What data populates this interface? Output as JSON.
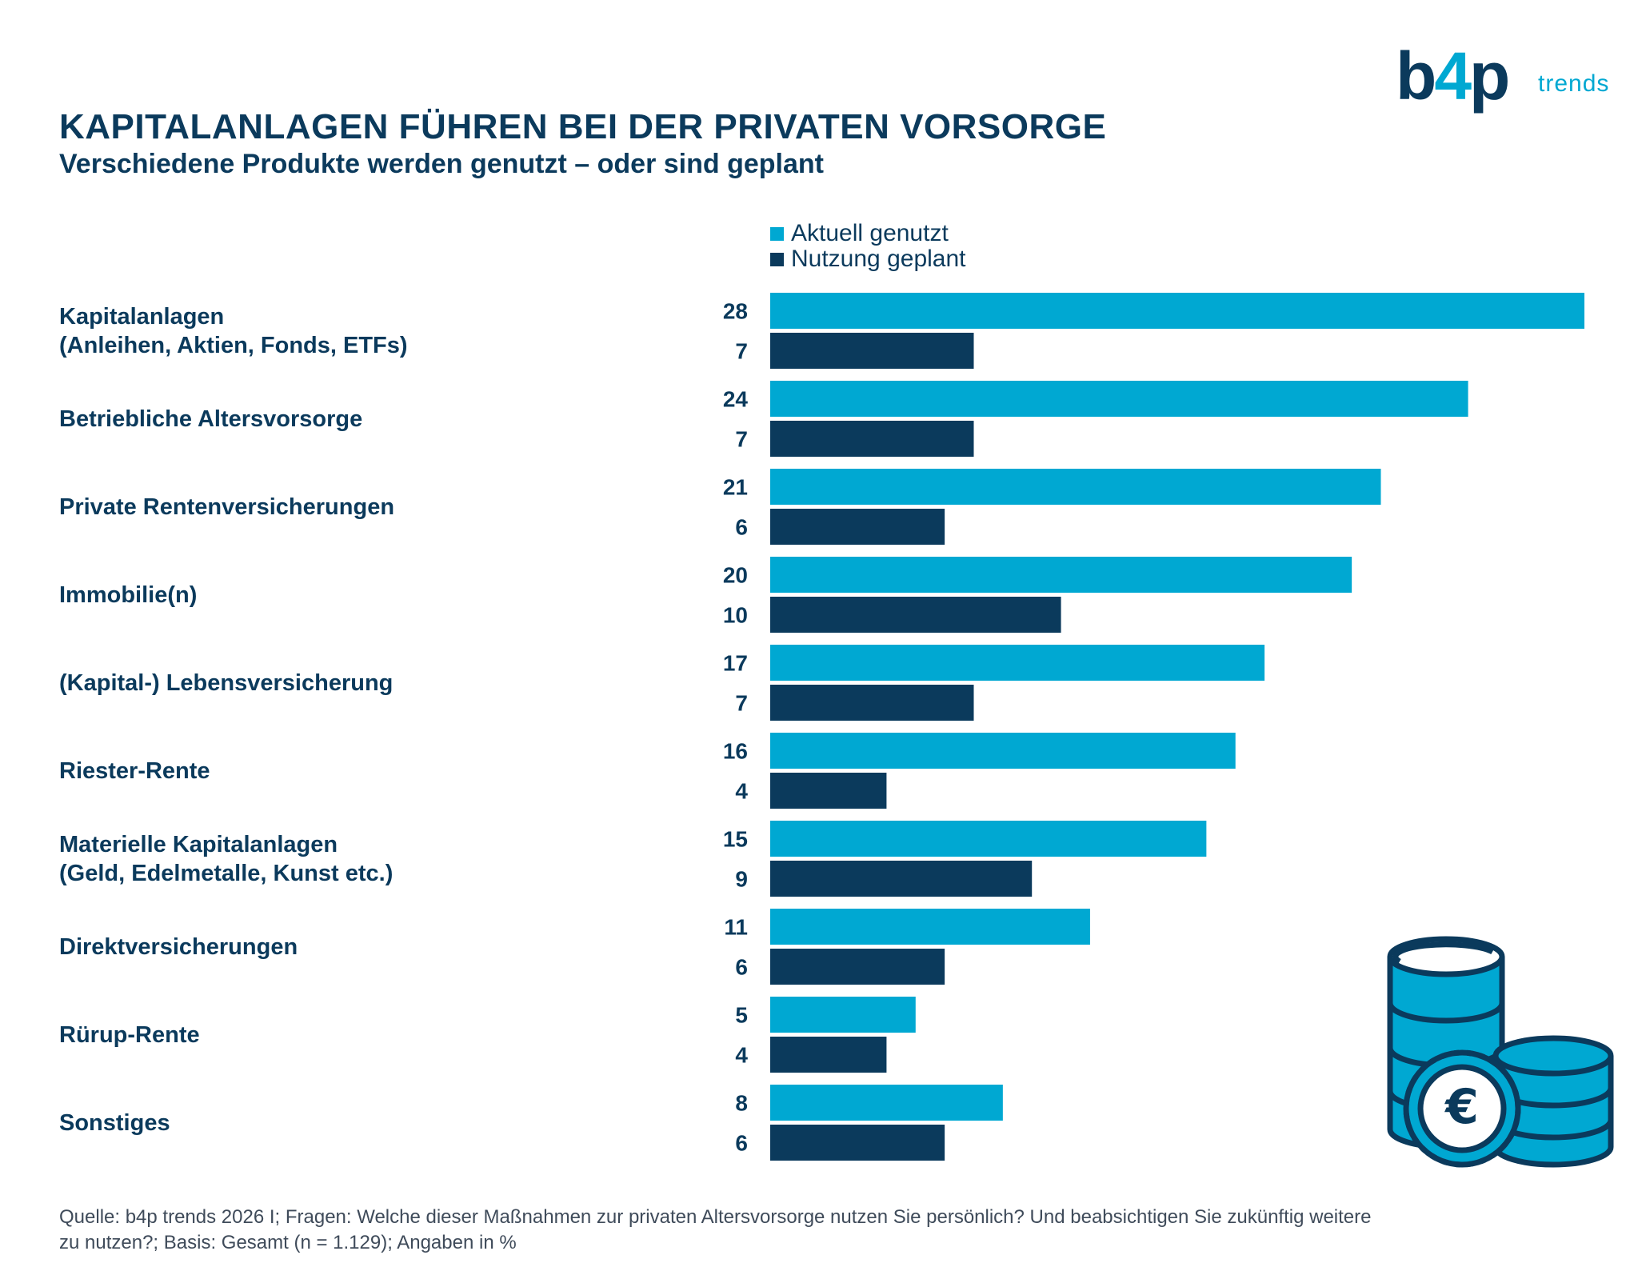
{
  "title": "KAPITALANLAGEN FÜHREN BEI DER PRIVATEN VORSORGE",
  "subtitle": "Verschiedene Produkte werden genutzt – oder sind geplant",
  "logo": {
    "mark_left": "b",
    "mark_four": "4",
    "mark_right": "p",
    "word": "trends"
  },
  "legend": {
    "current": "Aktuell genutzt",
    "planned": "Nutzung geplant"
  },
  "colors": {
    "current": "#00a8d2",
    "planned": "#0b3a5c",
    "text": "#0b3a5c"
  },
  "footnote": {
    "line1": "Quelle: b4p trends 2026 I; Fragen: Welche dieser Maßnahmen zur privaten Altersvorsorge nutzen Sie persönlich? Und beabsichtigen Sie zukünftig weitere",
    "line2": "zu nutzen?; Basis: Gesamt (n = 1.129); Angaben in %"
  },
  "icon": "coins-euro-icon",
  "chart_data": {
    "type": "bar",
    "orientation": "horizontal",
    "title": "KAPITALANLAGEN FÜHREN BEI DER PRIVATEN VORSORGE",
    "unit": "%",
    "xlim": [
      0,
      28
    ],
    "categories": [
      [
        "Kapitalanlagen",
        "(Anleihen, Aktien, Fonds, ETFs)"
      ],
      [
        "Betriebliche Altersvorsorge"
      ],
      [
        "Private Rentenversicherungen"
      ],
      [
        "Immobilie(n)"
      ],
      [
        "(Kapital-) Lebensversicherung"
      ],
      [
        "Riester-Rente"
      ],
      [
        "Materielle Kapitalanlagen",
        "(Geld, Edelmetalle, Kunst etc.)"
      ],
      [
        "Direktversicherungen"
      ],
      [
        "Rürup-Rente"
      ],
      [
        "Sonstiges"
      ]
    ],
    "series": [
      {
        "name": "Aktuell genutzt",
        "values": [
          28,
          24,
          21,
          20,
          17,
          16,
          15,
          11,
          5,
          8
        ]
      },
      {
        "name": "Nutzung geplant",
        "values": [
          7,
          7,
          6,
          10,
          7,
          4,
          9,
          6,
          4,
          6
        ]
      }
    ]
  }
}
